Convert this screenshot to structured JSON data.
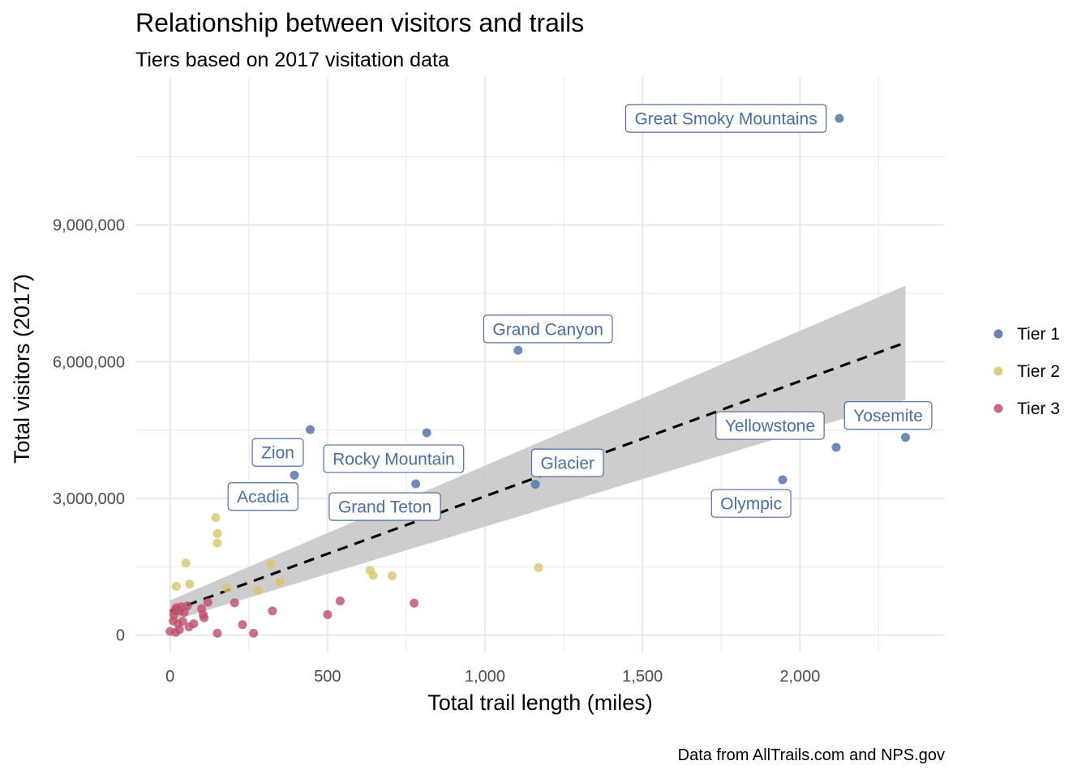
{
  "chart_data": {
    "type": "scatter",
    "title": "Relationship between visitors and trails",
    "subtitle": "Tiers based on 2017 visitation data",
    "xlabel": "Total trail length (miles)",
    "ylabel": "Total visitors (2017)",
    "caption": "Data from AllTrails.com and NPS.gov",
    "xlim": [
      -110,
      2460
    ],
    "ylim": [
      -380000,
      12250000
    ],
    "x_ticks": [
      0,
      500,
      1000,
      1500,
      2000
    ],
    "x_tick_labels": [
      "0",
      "500",
      "1,000",
      "1,500",
      "2,000"
    ],
    "y_ticks": [
      0,
      3000000,
      6000000,
      9000000
    ],
    "y_tick_labels": [
      "0",
      "3,000,000",
      "6,000,000",
      "9,000,000"
    ],
    "grid": true,
    "legend_position": "right",
    "colors": {
      "Tier 1": "#4a6fa5",
      "Tier 2": "#d9c46a",
      "Tier 3": "#c04d6a",
      "trend": "#000000",
      "band": "#c8c8c8",
      "grid": "#ebebeb"
    },
    "trend": {
      "x": [
        0,
        2335
      ],
      "y": [
        520000,
        6420000
      ],
      "style": "dashed"
    },
    "confidence_band": {
      "x": [
        0,
        2335
      ],
      "lower": [
        300000,
        5160000
      ],
      "upper": [
        760000,
        7670000
      ]
    },
    "series": [
      {
        "name": "Tier 1",
        "points": [
          {
            "x": 2125,
            "y": 11340000,
            "label": "Great Smoky Mountains"
          },
          {
            "x": 1105,
            "y": 6250000,
            "label": "Grand Canyon"
          },
          {
            "x": 2335,
            "y": 4340000,
            "label": "Yosemite"
          },
          {
            "x": 2115,
            "y": 4120000,
            "label": "Yellowstone"
          },
          {
            "x": 445,
            "y": 4510000
          },
          {
            "x": 815,
            "y": 4440000
          },
          {
            "x": 395,
            "y": 3510000,
            "label": "Zion"
          },
          {
            "x": 780,
            "y": 3320000,
            "label": "Rocky Mountain"
          },
          {
            "x": 1945,
            "y": 3410000,
            "label": "Olympic"
          },
          {
            "x": 1160,
            "y": 3310000,
            "label": "Glacier"
          }
        ],
        "labels": [
          {
            "text": "Great Smoky Mountains",
            "x": 1765,
            "y": 11340000
          },
          {
            "text": "Grand Canyon",
            "x": 1200,
            "y": 6720000
          },
          {
            "text": "Yosemite",
            "x": 2280,
            "y": 4820000
          },
          {
            "text": "Yellowstone",
            "x": 1905,
            "y": 4600000
          },
          {
            "text": "Zion",
            "x": 342,
            "y": 4010000
          },
          {
            "text": "Rocky Mountain",
            "x": 710,
            "y": 3870000
          },
          {
            "text": "Glacier",
            "x": 1262,
            "y": 3780000
          },
          {
            "text": "Acadia",
            "x": 295,
            "y": 3040000
          },
          {
            "text": "Grand Teton",
            "x": 682,
            "y": 2820000
          },
          {
            "text": "Olympic",
            "x": 1845,
            "y": 2890000
          }
        ]
      },
      {
        "name": "Tier 2",
        "points": [
          {
            "x": 145,
            "y": 2580000
          },
          {
            "x": 150,
            "y": 2230000
          },
          {
            "x": 150,
            "y": 2020000
          },
          {
            "x": 50,
            "y": 1580000
          },
          {
            "x": 320,
            "y": 1550000
          },
          {
            "x": 20,
            "y": 1070000
          },
          {
            "x": 62,
            "y": 1120000
          },
          {
            "x": 180,
            "y": 1030000
          },
          {
            "x": 280,
            "y": 980000
          },
          {
            "x": 350,
            "y": 1160000
          },
          {
            "x": 635,
            "y": 1420000
          },
          {
            "x": 645,
            "y": 1310000
          },
          {
            "x": 705,
            "y": 1300000
          },
          {
            "x": 1170,
            "y": 1480000
          }
        ]
      },
      {
        "name": "Tier 3",
        "points": [
          {
            "x": 120,
            "y": 720000
          },
          {
            "x": 205,
            "y": 710000
          },
          {
            "x": 540,
            "y": 750000
          },
          {
            "x": 775,
            "y": 700000
          },
          {
            "x": 325,
            "y": 530000
          },
          {
            "x": 500,
            "y": 450000
          },
          {
            "x": 230,
            "y": 230000
          },
          {
            "x": 265,
            "y": 40000
          },
          {
            "x": 150,
            "y": 40000
          },
          {
            "x": 0,
            "y": 80000
          },
          {
            "x": 18,
            "y": 60000
          },
          {
            "x": 30,
            "y": 120000
          },
          {
            "x": 10,
            "y": 310000
          },
          {
            "x": 25,
            "y": 250000
          },
          {
            "x": 40,
            "y": 300000
          },
          {
            "x": 60,
            "y": 180000
          },
          {
            "x": 75,
            "y": 250000
          },
          {
            "x": 12,
            "y": 450000
          },
          {
            "x": 15,
            "y": 540000
          },
          {
            "x": 20,
            "y": 600000
          },
          {
            "x": 35,
            "y": 620000
          },
          {
            "x": 55,
            "y": 640000
          },
          {
            "x": 45,
            "y": 500000
          },
          {
            "x": 100,
            "y": 580000
          },
          {
            "x": 105,
            "y": 450000
          },
          {
            "x": 108,
            "y": 380000
          },
          {
            "x": 30,
            "y": 530000
          }
        ]
      }
    ]
  }
}
